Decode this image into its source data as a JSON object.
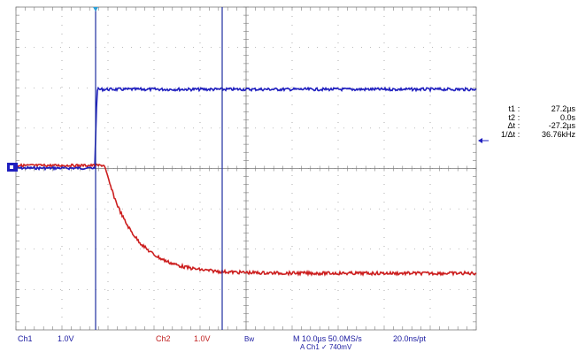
{
  "colors": {
    "background": "#ffffff",
    "grid": "#7a7a7a",
    "ch1_trace": "#1f1fbf",
    "ch2_trace": "#cc1f1f",
    "cursor": "#2030a0",
    "ch1_label": "#1a1aa0",
    "ch2_label": "#c02020"
  },
  "cursor_readout": {
    "rows": [
      {
        "label": "t1",
        "value": "27.2µs"
      },
      {
        "label": "t2",
        "value": "0.0s"
      },
      {
        "label": "Δt",
        "value": "-27.2µs"
      },
      {
        "label": "1/Δt",
        "value": "36.76kHz"
      }
    ]
  },
  "bottom_bar": {
    "ch1_name": "Ch1",
    "ch1_scale": "1.0V",
    "ch2_name": "Ch2",
    "ch2_scale": "1.0V",
    "bw_label": "Bw",
    "timebase": "M 10.0µs 50.0MS/s",
    "resolution": "20.0ns/pt",
    "trigger_partial": "A  Ch1  ✓  740mV"
  },
  "icons": {
    "ch1_ground_marker": "channel-1-ground-marker-icon",
    "trigger_position_marker": "trigger-position-marker-icon",
    "trigger_level_marker": "trigger-level-arrow-icon"
  }
}
